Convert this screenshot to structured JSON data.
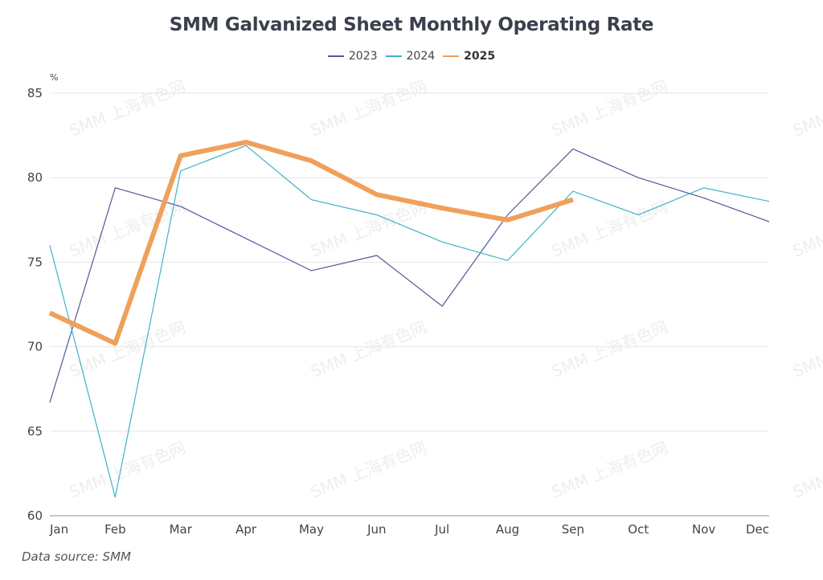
{
  "chart_data": {
    "type": "line",
    "title": "SMM Galvanized Sheet Monthly Operating Rate",
    "xlabel": "",
    "ylabel": "%",
    "ylim": [
      60,
      85
    ],
    "yticks": [
      60,
      65,
      70,
      75,
      80,
      85
    ],
    "grid": true,
    "legend_position": "top-center",
    "categories": [
      "Jan",
      "Feb",
      "Mar",
      "Apr",
      "May",
      "Jun",
      "Jul",
      "Aug",
      "Sep",
      "Oct",
      "Nov",
      "Dec"
    ],
    "category_labels_display": [
      "Jan",
      "Feb",
      "Mar",
      "Apr",
      "May",
      "Jun",
      "Jul",
      "Aug",
      "Seր",
      "Oct",
      "Nov",
      "Dec"
    ],
    "series": [
      {
        "name": "2023",
        "color": "#4f5a9a",
        "bold": false,
        "values": [
          66.7,
          79.4,
          78.3,
          76.4,
          74.5,
          75.4,
          72.4,
          77.8,
          81.7,
          80.0,
          78.8,
          77.4
        ]
      },
      {
        "name": "2024",
        "color": "#3fb3c8",
        "bold": false,
        "values": [
          76.0,
          61.1,
          80.4,
          81.9,
          78.7,
          77.8,
          76.2,
          75.1,
          79.2,
          77.8,
          79.4,
          78.6
        ]
      },
      {
        "name": "2025",
        "color": "#f0a05a",
        "bold": true,
        "values": [
          72.0,
          70.2,
          81.3,
          82.1,
          81.0,
          79.0,
          78.2,
          77.5,
          78.7
        ]
      }
    ],
    "watermark": "SMM 上海有色网",
    "source": "Data source:  SMM"
  }
}
